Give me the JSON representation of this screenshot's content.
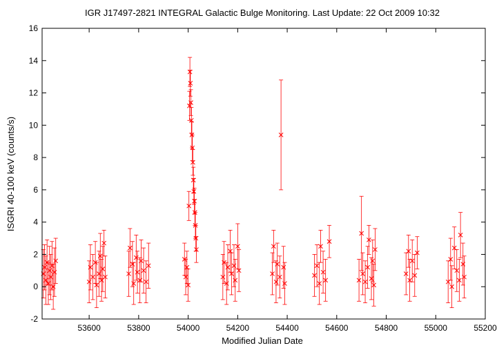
{
  "chart_data": {
    "type": "scatter",
    "title": "IGR J17497-2821    INTEGRAL Galactic Bulge Monitoring.  Last Update: 22 Oct 2009 10:32",
    "xlabel": "Modified Julian Date",
    "ylabel": "ISGRI 40-100 keV (counts/s)",
    "xlim": [
      53410,
      55200
    ],
    "ylim": [
      -2,
      16
    ],
    "x_ticks": [
      53600,
      53800,
      54000,
      54200,
      54400,
      54600,
      54800,
      55000,
      55200
    ],
    "y_ticks": [
      -2,
      0,
      2,
      4,
      6,
      8,
      10,
      12,
      14,
      16
    ],
    "grid": false,
    "legend": "none",
    "marker": "x",
    "error_bars": true,
    "color": "#ff0000",
    "series": [
      {
        "points": [
          [
            53415,
            0.8,
            1.5
          ],
          [
            53420,
            1.2,
            1.4
          ],
          [
            53425,
            0.4,
            1.5
          ],
          [
            53430,
            1.5,
            1.4
          ],
          [
            53435,
            0.2,
            1.3
          ],
          [
            53440,
            1.0,
            1.5
          ],
          [
            53445,
            0.6,
            1.4
          ],
          [
            53450,
            1.3,
            1.5
          ],
          [
            53455,
            0.0,
            1.4
          ],
          [
            53460,
            0.9,
            1.5
          ],
          [
            53465,
            1.6,
            1.4
          ],
          [
            53600,
            0.3,
            1.3
          ],
          [
            53605,
            1.2,
            1.4
          ],
          [
            53615,
            0.6,
            1.4
          ],
          [
            53625,
            1.5,
            1.3
          ],
          [
            53630,
            0.1,
            1.4
          ],
          [
            53640,
            0.8,
            1.4
          ],
          [
            53645,
            1.9,
            1.4
          ],
          [
            53650,
            0.4,
            1.3
          ],
          [
            53655,
            1.1,
            1.4
          ],
          [
            53660,
            2.7,
            0.8
          ],
          [
            53665,
            0.6,
            1.3
          ],
          [
            53760,
            0.8,
            1.4
          ],
          [
            53765,
            2.4,
            1.2
          ],
          [
            53775,
            1.4,
            1.4
          ],
          [
            53780,
            0.2,
            1.3
          ],
          [
            53790,
            1.8,
            1.4
          ],
          [
            53795,
            0.9,
            1.3
          ],
          [
            53805,
            0.4,
            1.4
          ],
          [
            53810,
            1.6,
            1.3
          ],
          [
            53820,
            1.0,
            1.4
          ],
          [
            53830,
            0.3,
            1.3
          ],
          [
            53840,
            1.3,
            1.4
          ],
          [
            53985,
            1.7,
            1.0
          ],
          [
            53990,
            0.6,
            1.1
          ],
          [
            53995,
            1.2,
            1.0
          ],
          [
            54000,
            0.1,
            1.0
          ],
          [
            54003,
            5.0,
            0.9
          ],
          [
            54005,
            11.2,
            0.9
          ],
          [
            54007,
            13.3,
            0.9
          ],
          [
            54009,
            12.6,
            0.8
          ],
          [
            54011,
            11.4,
            0.8
          ],
          [
            54013,
            10.3,
            0.8
          ],
          [
            54015,
            9.4,
            0.8
          ],
          [
            54017,
            8.6,
            0.8
          ],
          [
            54019,
            7.7,
            0.8
          ],
          [
            54021,
            6.6,
            0.8
          ],
          [
            54023,
            5.9,
            0.8
          ],
          [
            54025,
            5.3,
            0.8
          ],
          [
            54027,
            4.6,
            0.8
          ],
          [
            54029,
            3.8,
            0.8
          ],
          [
            54031,
            3.0,
            0.8
          ],
          [
            54033,
            2.3,
            0.8
          ],
          [
            54140,
            0.6,
            1.4
          ],
          [
            54145,
            1.5,
            1.3
          ],
          [
            54155,
            0.2,
            1.3
          ],
          [
            54160,
            1.2,
            1.4
          ],
          [
            54170,
            2.2,
            1.3
          ],
          [
            54175,
            0.8,
            1.3
          ],
          [
            54185,
            1.3,
            1.3
          ],
          [
            54190,
            0.4,
            1.3
          ],
          [
            54200,
            2.5,
            1.4
          ],
          [
            54205,
            1.0,
            1.3
          ],
          [
            54340,
            0.8,
            1.3
          ],
          [
            54345,
            2.5,
            1.0
          ],
          [
            54355,
            0.3,
            1.3
          ],
          [
            54360,
            1.4,
            1.3
          ],
          [
            54370,
            0.6,
            1.3
          ],
          [
            54375,
            9.4,
            3.4
          ],
          [
            54385,
            1.2,
            1.3
          ],
          [
            54390,
            0.2,
            1.3
          ],
          [
            54510,
            0.7,
            1.3
          ],
          [
            54520,
            1.3,
            1.3
          ],
          [
            54530,
            0.2,
            1.3
          ],
          [
            54535,
            2.5,
            1.0
          ],
          [
            54545,
            0.9,
            1.3
          ],
          [
            54555,
            0.4,
            1.3
          ],
          [
            54570,
            2.8,
            1.0
          ],
          [
            54690,
            0.4,
            1.3
          ],
          [
            54700,
            3.3,
            2.3
          ],
          [
            54705,
            0.8,
            1.3
          ],
          [
            54715,
            0.3,
            1.3
          ],
          [
            54725,
            1.2,
            1.3
          ],
          [
            54730,
            2.9,
            0.9
          ],
          [
            54740,
            0.5,
            1.3
          ],
          [
            54745,
            1.6,
            1.3
          ],
          [
            54750,
            0.1,
            1.3
          ],
          [
            54755,
            2.3,
            1.3
          ],
          [
            54880,
            0.8,
            1.3
          ],
          [
            54890,
            2.2,
            1.0
          ],
          [
            54895,
            0.4,
            1.3
          ],
          [
            54905,
            1.6,
            1.3
          ],
          [
            54915,
            0.7,
            1.3
          ],
          [
            54925,
            2.1,
            1.0
          ],
          [
            55050,
            0.3,
            1.3
          ],
          [
            55060,
            1.7,
            1.3
          ],
          [
            55065,
            0.0,
            1.3
          ],
          [
            55075,
            2.4,
            1.3
          ],
          [
            55085,
            1.0,
            1.3
          ],
          [
            55095,
            0.4,
            1.3
          ],
          [
            55100,
            3.2,
            1.4
          ],
          [
            55110,
            1.4,
            1.3
          ],
          [
            55115,
            0.6,
            1.3
          ]
        ]
      }
    ]
  }
}
